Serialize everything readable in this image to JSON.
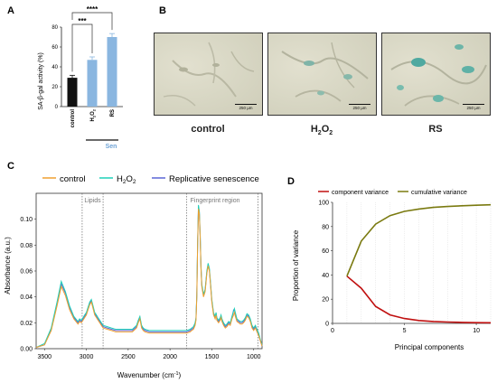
{
  "panel_labels": {
    "a": "A",
    "b": "B",
    "c": "C",
    "d": "D"
  },
  "panel_a": {
    "ylabel": "SA-β-gal activity (%)",
    "yticks": [
      "0",
      "20",
      "40",
      "60",
      "80"
    ],
    "categories": [
      "control",
      "H2O2",
      "RS"
    ],
    "group_label": "Sen",
    "sig_pairs": [
      {
        "label": "***"
      },
      {
        "label": "****"
      }
    ],
    "colors": {
      "control": "#111111",
      "senescent": "#8ab6e0",
      "group": "#6fa3d6"
    }
  },
  "panel_b": {
    "images": [
      {
        "label": "control",
        "scale": "250 µm"
      },
      {
        "label_main": "H",
        "label_sub": "2",
        "label_tail": "O",
        "label_sub2": "2",
        "scale": "250 µm"
      },
      {
        "label": "RS",
        "scale": "250 µm"
      }
    ]
  },
  "panel_c": {
    "legend": [
      {
        "name": "control",
        "color": "#f0a030"
      },
      {
        "name_main": "H",
        "name_sub": "2",
        "name_tail": "O",
        "name_sub2": "2",
        "color": "#1fd0b8"
      },
      {
        "name": "Replicative senescence",
        "color": "#5b66d6"
      }
    ],
    "ylabel": "Absorbance (a.u.)",
    "xlabel_main": "Wavenumber (cm",
    "xlabel_sup": "-1",
    "xlabel_tail": ")",
    "regions": [
      "Lipids",
      "Fingerprint region"
    ],
    "yticks": [
      "0.00",
      "0.02",
      "0.04",
      "0.06",
      "0.08",
      "0.10"
    ],
    "xticks": [
      "3500",
      "3000",
      "2500",
      "2000",
      "1500",
      "1000"
    ]
  },
  "panel_d": {
    "legend": [
      {
        "name": "component variance",
        "color": "#c01010"
      },
      {
        "name": "cumulative variance",
        "color": "#7a7a10"
      }
    ],
    "ylabel": "Proportion of variance",
    "xlabel": "Principal components",
    "yticks": [
      "0",
      "20",
      "40",
      "60",
      "80",
      "100"
    ],
    "xticks": [
      "0",
      "5",
      "10"
    ]
  },
  "chart_data": [
    {
      "type": "bar",
      "categories": [
        "control",
        "H2O2",
        "RS"
      ],
      "values": [
        29,
        47,
        70
      ],
      "errors": [
        2.5,
        3,
        3.5
      ],
      "ylabel": "SA-β-gal activity (%)",
      "ylim": [
        0,
        80
      ],
      "annotations": [
        "***",
        "****"
      ]
    },
    {
      "type": "line",
      "xlabel": "Wavenumber (cm-1)",
      "ylabel": "Absorbance (a.u.)",
      "xlim": [
        3600,
        900
      ],
      "ylim": [
        0,
        0.12
      ],
      "x": [
        3600,
        3500,
        3420,
        3350,
        3300,
        3250,
        3200,
        3150,
        3100,
        3080,
        3060,
        3040,
        3020,
        3000,
        2980,
        2960,
        2940,
        2920,
        2900,
        2880,
        2860,
        2850,
        2840,
        2820,
        2800,
        2750,
        2700,
        2650,
        2600,
        2550,
        2500,
        2450,
        2400,
        2380,
        2360,
        2340,
        2320,
        2300,
        2250,
        2200,
        2150,
        2100,
        2050,
        2000,
        1950,
        1900,
        1850,
        1800,
        1760,
        1740,
        1720,
        1700,
        1690,
        1680,
        1670,
        1660,
        1650,
        1640,
        1630,
        1620,
        1600,
        1580,
        1560,
        1545,
        1530,
        1515,
        1500,
        1480,
        1460,
        1450,
        1440,
        1420,
        1400,
        1390,
        1380,
        1360,
        1340,
        1320,
        1300,
        1280,
        1260,
        1240,
        1230,
        1220,
        1200,
        1180,
        1160,
        1140,
        1120,
        1100,
        1080,
        1060,
        1040,
        1020,
        1000,
        980,
        960,
        940,
        920,
        900
      ],
      "series": [
        {
          "name": "control",
          "values": [
            0.001,
            0.003,
            0.014,
            0.033,
            0.048,
            0.041,
            0.03,
            0.023,
            0.019,
            0.021,
            0.02,
            0.022,
            0.024,
            0.026,
            0.03,
            0.034,
            0.036,
            0.031,
            0.026,
            0.024,
            0.022,
            0.021,
            0.02,
            0.018,
            0.016,
            0.015,
            0.014,
            0.013,
            0.013,
            0.013,
            0.013,
            0.013,
            0.016,
            0.02,
            0.023,
            0.016,
            0.014,
            0.013,
            0.012,
            0.012,
            0.012,
            0.012,
            0.012,
            0.012,
            0.012,
            0.012,
            0.012,
            0.012,
            0.013,
            0.014,
            0.015,
            0.018,
            0.022,
            0.04,
            0.08,
            0.108,
            0.104,
            0.086,
            0.062,
            0.048,
            0.04,
            0.044,
            0.058,
            0.064,
            0.06,
            0.048,
            0.036,
            0.026,
            0.023,
            0.026,
            0.022,
            0.02,
            0.022,
            0.024,
            0.021,
            0.018,
            0.016,
            0.017,
            0.019,
            0.018,
            0.023,
            0.026,
            0.028,
            0.025,
            0.021,
            0.02,
            0.019,
            0.019,
            0.02,
            0.022,
            0.025,
            0.024,
            0.021,
            0.016,
            0.014,
            0.016,
            0.013,
            0.01,
            0.006,
            0.002
          ]
        },
        {
          "name": "H2O2",
          "values": [
            0.001,
            0.004,
            0.016,
            0.036,
            0.052,
            0.044,
            0.033,
            0.025,
            0.021,
            0.023,
            0.022,
            0.024,
            0.026,
            0.028,
            0.032,
            0.036,
            0.038,
            0.033,
            0.028,
            0.026,
            0.024,
            0.023,
            0.022,
            0.02,
            0.018,
            0.017,
            0.016,
            0.015,
            0.015,
            0.015,
            0.015,
            0.015,
            0.018,
            0.022,
            0.025,
            0.018,
            0.016,
            0.015,
            0.014,
            0.014,
            0.014,
            0.014,
            0.014,
            0.014,
            0.014,
            0.014,
            0.014,
            0.014,
            0.015,
            0.016,
            0.017,
            0.02,
            0.024,
            0.042,
            0.082,
            0.111,
            0.106,
            0.088,
            0.064,
            0.05,
            0.042,
            0.046,
            0.06,
            0.066,
            0.062,
            0.05,
            0.038,
            0.028,
            0.025,
            0.028,
            0.024,
            0.022,
            0.024,
            0.026,
            0.023,
            0.02,
            0.018,
            0.019,
            0.021,
            0.02,
            0.025,
            0.029,
            0.031,
            0.028,
            0.023,
            0.022,
            0.021,
            0.021,
            0.022,
            0.024,
            0.027,
            0.026,
            0.023,
            0.018,
            0.016,
            0.018,
            0.015,
            0.012,
            0.007,
            0.003
          ]
        },
        {
          "name": "Replicative senescence",
          "values": [
            0.001,
            0.003,
            0.015,
            0.034,
            0.05,
            0.043,
            0.032,
            0.024,
            0.02,
            0.022,
            0.021,
            0.023,
            0.025,
            0.027,
            0.031,
            0.035,
            0.037,
            0.032,
            0.027,
            0.025,
            0.023,
            0.022,
            0.021,
            0.019,
            0.017,
            0.016,
            0.015,
            0.014,
            0.014,
            0.014,
            0.014,
            0.014,
            0.017,
            0.021,
            0.024,
            0.017,
            0.015,
            0.014,
            0.013,
            0.013,
            0.013,
            0.013,
            0.013,
            0.013,
            0.013,
            0.013,
            0.013,
            0.013,
            0.014,
            0.015,
            0.016,
            0.019,
            0.023,
            0.041,
            0.081,
            0.11,
            0.105,
            0.087,
            0.063,
            0.049,
            0.041,
            0.045,
            0.059,
            0.065,
            0.061,
            0.049,
            0.037,
            0.027,
            0.024,
            0.027,
            0.023,
            0.021,
            0.023,
            0.025,
            0.022,
            0.019,
            0.017,
            0.018,
            0.02,
            0.019,
            0.024,
            0.03,
            0.03,
            0.027,
            0.022,
            0.021,
            0.02,
            0.02,
            0.021,
            0.023,
            0.026,
            0.025,
            0.022,
            0.017,
            0.015,
            0.017,
            0.014,
            0.011,
            0.006,
            0.002
          ]
        }
      ],
      "regions": [
        {
          "name": "Lipids",
          "from": 3050,
          "to": 2800
        },
        {
          "name": "Fingerprint region",
          "from": 1800,
          "to": 950
        }
      ]
    },
    {
      "type": "line",
      "xlabel": "Principal components",
      "ylabel": "Proportion of variance",
      "xlim": [
        0,
        11
      ],
      "ylim": [
        0,
        100
      ],
      "x": [
        1,
        2,
        3,
        4,
        5,
        6,
        7,
        8,
        9,
        10,
        11
      ],
      "series": [
        {
          "name": "component variance",
          "values": [
            39,
            29,
            14,
            7,
            4,
            2.4,
            1.6,
            1.1,
            0.8,
            0.6,
            0.5
          ]
        },
        {
          "name": "cumulative variance",
          "values": [
            39,
            68,
            82,
            89,
            92.5,
            94.5,
            95.8,
            96.6,
            97.2,
            97.6,
            98
          ]
        }
      ]
    }
  ]
}
